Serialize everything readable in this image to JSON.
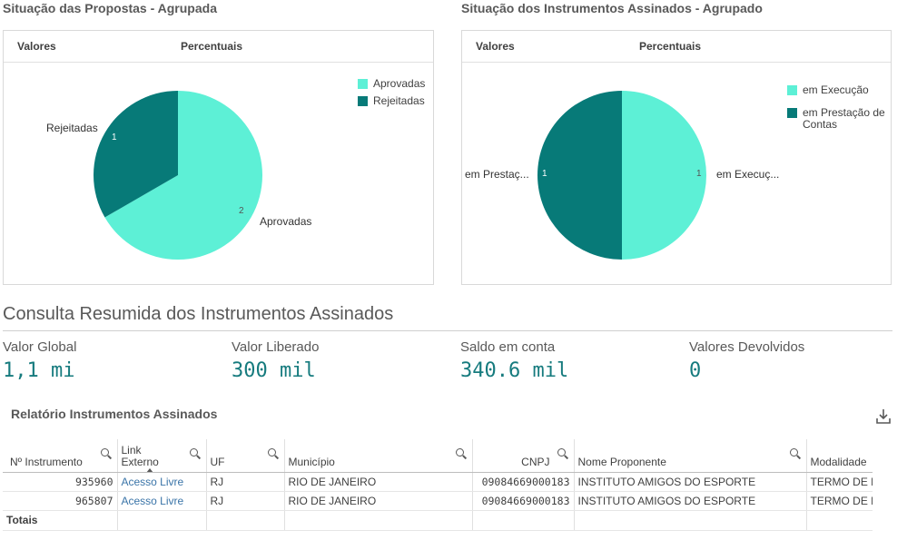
{
  "proposals_panel": {
    "title": "Situação das Propostas - Agrupada",
    "tab_values": "Valores",
    "tab_percent": "Percentuais",
    "legend": [
      {
        "label": "Aprovadas",
        "color": "#5df0d6"
      },
      {
        "label": "Rejeitadas",
        "color": "#077a78"
      }
    ]
  },
  "instruments_panel": {
    "title": "Situação dos Instrumentos Assinados - Agrupado",
    "tab_values": "Valores",
    "tab_percent": "Percentuais",
    "legend": [
      {
        "label": "em Execução",
        "color": "#5df0d6"
      },
      {
        "label": "em Prestação de Contas",
        "color": "#077a78"
      }
    ]
  },
  "chart_data": [
    {
      "type": "pie",
      "categories": [
        "Aprovadas",
        "Rejeitadas"
      ],
      "values": [
        2,
        1
      ],
      "slice_labels": [
        "Aprovadas",
        "Rejeitadas"
      ],
      "colors": [
        "#5df0d6",
        "#077a78"
      ],
      "legend": "top-right"
    },
    {
      "type": "pie",
      "categories": [
        "em Execução",
        "em Prestação de Contas"
      ],
      "values": [
        1,
        1
      ],
      "slice_labels": [
        "em Execuç...",
        "em Prestaç..."
      ],
      "colors": [
        "#5df0d6",
        "#077a78"
      ],
      "legend": "top-right"
    }
  ],
  "summary": {
    "title": "Consulta Resumida dos Instrumentos Assinados",
    "kpis": [
      {
        "label": "Valor Global",
        "value": "1,1 mi"
      },
      {
        "label": "Valor Liberado",
        "value": "300 mil"
      },
      {
        "label": "Saldo em conta",
        "value": "340.6 mil"
      },
      {
        "label": "Valores Devolvidos",
        "value": "0"
      }
    ]
  },
  "report": {
    "title": "Relatório Instrumentos Assinados",
    "columns": [
      "Nº Instrumento",
      "Link\nExterno",
      "UF",
      "Município",
      "CNPJ",
      "Nome Proponente",
      "Modalidade"
    ],
    "rows": [
      [
        "935960",
        "Acesso Livre",
        "RJ",
        "RIO DE JANEIRO",
        "09084669000183",
        "INSTITUTO AMIGOS DO ESPORTE",
        "TERMO DE FOMENTO"
      ],
      [
        "965807",
        "Acesso Livre",
        "RJ",
        "RIO DE JANEIRO",
        "09084669000183",
        "INSTITUTO AMIGOS DO ESPORTE",
        "TERMO DE FOMENTO"
      ]
    ],
    "totals_label": "Totais"
  }
}
